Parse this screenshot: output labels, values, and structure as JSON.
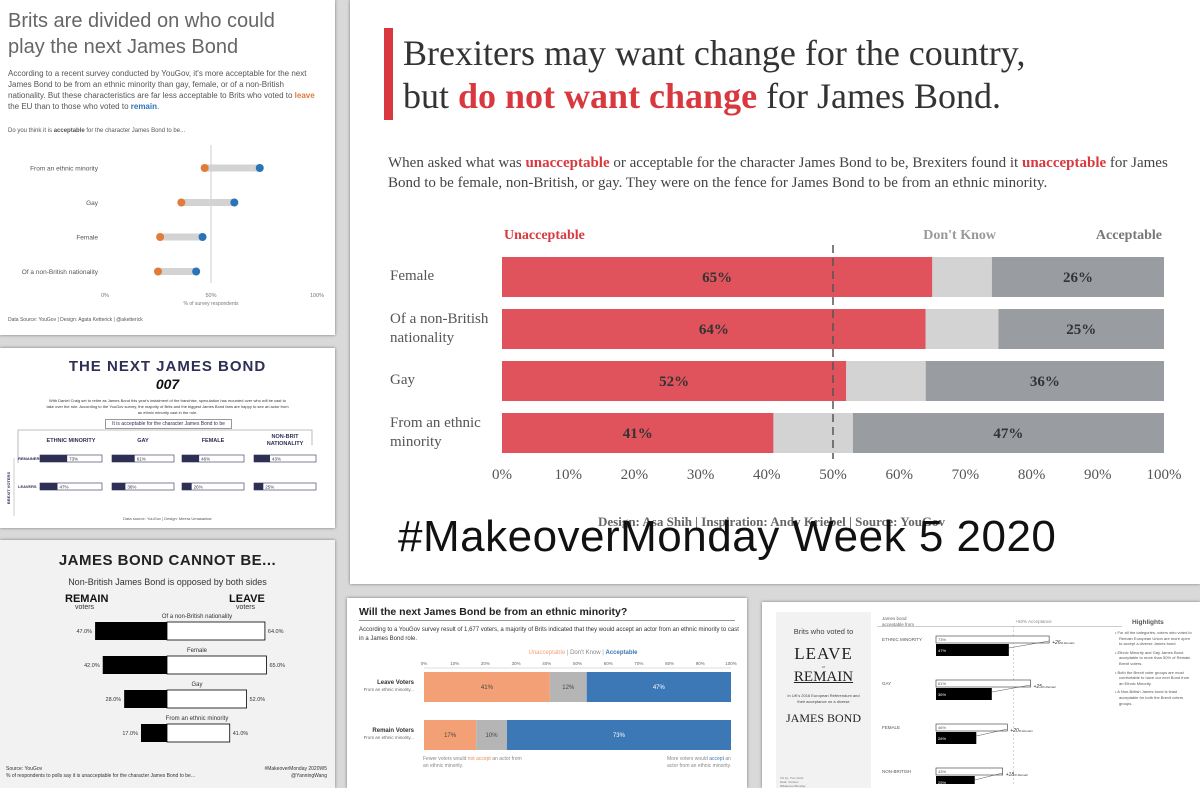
{
  "p1": {
    "title": "Brits are divided on who could play the next James Bond",
    "desc_a": "According to a recent survey conducted by YouGov, it's more acceptable for the next James Bond to be from an ethnic minority than gay, female, or of a non-British nationality. But these characteristics are far less acceptable to Brits who voted to ",
    "leave_word": "leave",
    "desc_b": " the EU than to those who voted to ",
    "remain_word": "remain",
    "desc_c": ".",
    "question_a": "Do you think it is ",
    "question_bold": "acceptable",
    "question_b": " for the character James Bond to be...",
    "axis_label": "% of survey respondents",
    "source": "Data Source: YouGov | Design: Agata Ketterick | @aketterick",
    "colors": {
      "leave": "#e07b39",
      "remain": "#2a73b8",
      "bar": "#d3d3d3"
    }
  },
  "p2": {
    "title": "THE NEXT JAMES BOND",
    "logo": "007",
    "desc": "With Daniel Craig set to retire as James Bond this year's instalment of the franchise, speculation has mounted over who will be cast to take over the role. According to the YouGov survey, the majority of Brits and the biggest James Bond fans are happy to see an actor from an ethnic minority cast in the role.",
    "question": "It is acceptable for the character James Bond to be",
    "side_label": "BREXIT VOTERS",
    "rows": [
      "REMAINERS",
      "LEAVERS"
    ],
    "source": "Data source: YouGov | Design: Meera Umasankar",
    "color": "#2e2f55"
  },
  "p3": {
    "title": "JAMES BOND CANNOT BE...",
    "subtitle": "Non-British James Bond is opposed by both sides",
    "left_head": "REMAIN",
    "right_head": "LEAVE",
    "sub_head": "voters",
    "source_a": "Source: YouGov",
    "source_b": "% of respondents to polls say it is unacceptable for the character James Bond to be...",
    "tag_a": "#MakeoverMonday 2020W5",
    "tag_b": "@YanningWang"
  },
  "p4": {
    "title_a": "Brexiters may want change for the country,",
    "title_b1": "but ",
    "title_red": "do not want change",
    "title_b2": " for James Bond.",
    "sub_a": "When asked what was ",
    "sub_red1": "unacceptable",
    "sub_b": " or acceptable for the character James Bond to be, Brexiters found it ",
    "sub_red2": "unacceptable",
    "sub_c": " for James Bond to be female, non-British, or gay. They were on the fence for James Bond to be from an ethnic minority.",
    "credit": "Design: Asa Shih | Inspiration: Andy Kriebel | Source: YouGov",
    "overlay": "#MakeoverMonday Week 5 2020",
    "colors": {
      "unacceptable": "#e0535c",
      "dont_know": "#d3d3d3",
      "acceptable": "#999ca1",
      "accent": "#d9383f"
    }
  },
  "p5": {
    "title": "Will the next James Bond be from an ethnic minority?",
    "desc": "According to a YouGov survey result of 1,677 voters, a majority of Brits indicated that they would accept an actor from an ethnic minority to cast in a James Bond role.",
    "note_left_a": "Fewer voters would ",
    "note_left_red": "not accept",
    "note_left_b": " an actor from an ethnic minority.",
    "note_right_a": "More voters would ",
    "note_right_blue": "accept",
    "note_right_b": " an actor from an ethnic minority.",
    "colors": {
      "unacceptable": "#f4a077",
      "dont_know": "#b5b5b5",
      "acceptable": "#3b78b5"
    }
  },
  "p6": {
    "t1": "Brits who voted to",
    "t2": "LEAVE",
    "t3": "or",
    "t4": "REMAIN",
    "t5": "In UK's 2016 European Referendum and their acceptance on a diverse",
    "t6": "JAMES BOND",
    "col_head_a": "James bond",
    "col_head_b": "acceptable from",
    "ref_label": "+50% Acceptance",
    "highlights_title": "Highlights",
    "highlights": [
      "For all the categories, voters who voted to Remain European Union are more open to accept a diverse James bond",
      "Ethnic Minority and Gay James Bond acceptable to more than 50% of Remain Brexit voters.",
      "Both the Brexit voter groups are most comfortable to have our next Bond from an Ethnic Minority.",
      "A Non-British James bond is least acceptable for both the Brexit voters groups."
    ],
    "footer_a": "Viz by: Yuvi Joshi",
    "footer_b": "Data: YouGov",
    "footer_c": "#MakeoverMonday"
  },
  "chart_data": [
    {
      "id": "dumbbell",
      "type": "scatter",
      "title": "Brits are divided on who could play the next James Bond",
      "xlabel": "% of survey respondents",
      "xlim": [
        0,
        100
      ],
      "x_ticks": [
        "0%",
        "50%",
        "100%"
      ],
      "categories": [
        "From an ethnic minority",
        "Gay",
        "Female",
        "Of a non-British nationality"
      ],
      "series": [
        {
          "name": "leave",
          "values": [
            47,
            36,
            26,
            25
          ]
        },
        {
          "name": "remain",
          "values": [
            73,
            61,
            46,
            43
          ]
        }
      ]
    },
    {
      "id": "next-bond",
      "type": "bar",
      "title": "THE NEXT JAMES BOND",
      "categories": [
        "ETHNIC MINORITY",
        "GAY",
        "FEMALE",
        "NON-BRIT NATIONALITY"
      ],
      "series": [
        {
          "name": "REMAINERS",
          "values": [
            73,
            61,
            46,
            43
          ],
          "labels": [
            "73%",
            "61%",
            "46%",
            "43%"
          ]
        },
        {
          "name": "LEAVERS",
          "values": [
            47,
            36,
            26,
            25
          ],
          "labels": [
            "47%",
            "36%",
            "26%",
            "25%"
          ]
        }
      ]
    },
    {
      "id": "cannot-be",
      "type": "bar",
      "title": "JAMES BOND CANNOT BE...",
      "categories": [
        "Of a non-British nationality",
        "Female",
        "Gay",
        "From an ethnic minority"
      ],
      "series": [
        {
          "name": "REMAIN",
          "values": [
            47.0,
            42.0,
            28.0,
            17.0
          ],
          "labels": [
            "47.0%",
            "42.0%",
            "28.0%",
            "17.0%"
          ]
        },
        {
          "name": "LEAVE",
          "values": [
            64.0,
            65.0,
            52.0,
            41.0
          ],
          "labels": [
            "64.0%",
            "65.0%",
            "52.0%",
            "41.0%"
          ]
        }
      ]
    },
    {
      "id": "brexiters",
      "type": "bar",
      "stacked": true,
      "categories": [
        "Female",
        "Of a non-British nationality",
        "Gay",
        "From an ethnic minority"
      ],
      "series": [
        {
          "name": "Unacceptable",
          "values": [
            65,
            64,
            52,
            41
          ],
          "labels": [
            "65%",
            "64%",
            "52%",
            "41%"
          ]
        },
        {
          "name": "Don't Know",
          "values": [
            9,
            11,
            12,
            12
          ]
        },
        {
          "name": "Acceptable",
          "values": [
            26,
            25,
            36,
            47
          ],
          "labels": [
            "26%",
            "25%",
            "36%",
            "47%"
          ]
        }
      ],
      "x_ticks": [
        "0%",
        "10%",
        "20%",
        "30%",
        "40%",
        "50%",
        "60%",
        "70%",
        "80%",
        "90%",
        "100%"
      ],
      "xlim": [
        0,
        100
      ],
      "reference_line": 50
    },
    {
      "id": "ethnic-minority",
      "type": "bar",
      "stacked": true,
      "title": "Will the next James Bond be from an ethnic minority?",
      "categories": [
        "Leave Voters",
        "Remain Voters"
      ],
      "category_sub": "From an ethnic minority...",
      "series": [
        {
          "name": "Unacceptable",
          "values": [
            41,
            17
          ],
          "labels": [
            "41%",
            "17%"
          ]
        },
        {
          "name": "Don't Know",
          "values": [
            12,
            10
          ],
          "labels": [
            "12%",
            "10%"
          ]
        },
        {
          "name": "Acceptable",
          "values": [
            47,
            73
          ],
          "labels": [
            "47%",
            "73%"
          ]
        }
      ],
      "x_ticks": [
        "0%",
        "10%",
        "20%",
        "30%",
        "40%",
        "50%",
        "60%",
        "70%",
        "80%",
        "90%",
        "100%"
      ],
      "xlim": [
        0,
        100
      ]
    },
    {
      "id": "leave-remain",
      "type": "bar",
      "categories": [
        "ETHNIC MINORITY",
        "GAY",
        "FEMALE",
        "NON-BRITISH"
      ],
      "series": [
        {
          "name": "REMAIN",
          "values": [
            73,
            61,
            46,
            43
          ],
          "labels": [
            "73%",
            "61%",
            "46%",
            "43%"
          ]
        },
        {
          "name": "LEAVE",
          "values": [
            47,
            36,
            26,
            25
          ],
          "labels": [
            "47%",
            "36%",
            "26%",
            "25%"
          ]
        }
      ],
      "diff_labels": [
        "+26",
        "+25",
        "+20",
        "+18"
      ],
      "diff_suffix": "% Remain"
    }
  ]
}
